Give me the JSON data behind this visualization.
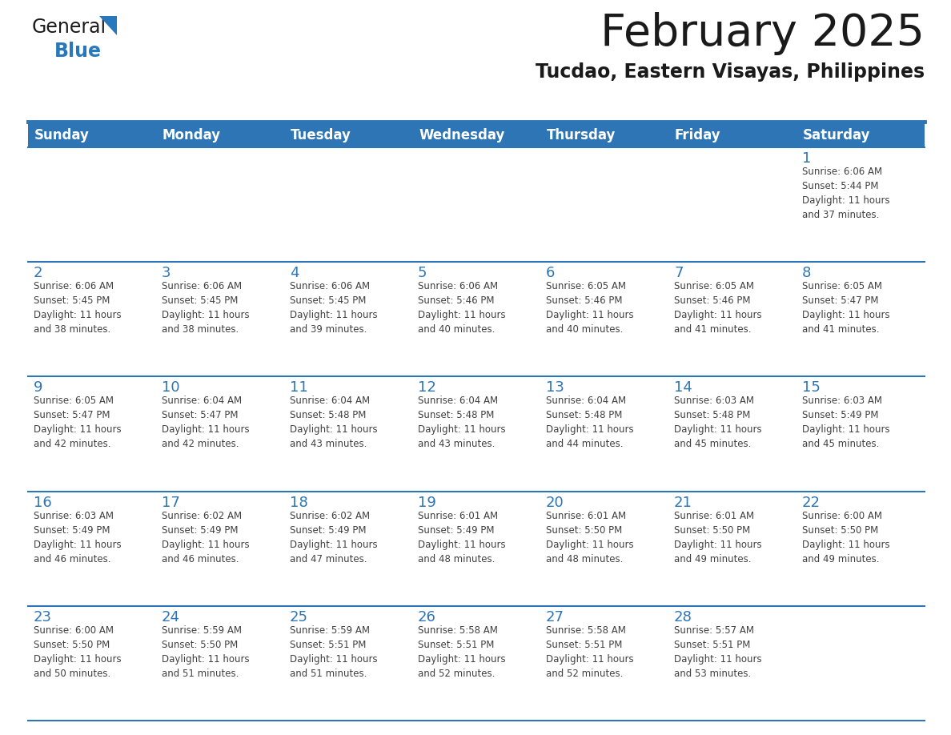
{
  "title": "February 2025",
  "subtitle": "Tucdao, Eastern Visayas, Philippines",
  "header_bg": "#2E75B6",
  "header_text_color": "#FFFFFF",
  "cell_bg": "#FFFFFF",
  "day_headers": [
    "Sunday",
    "Monday",
    "Tuesday",
    "Wednesday",
    "Thursday",
    "Friday",
    "Saturday"
  ],
  "title_color": "#1A1A1A",
  "subtitle_color": "#1A1A1A",
  "day_num_color": "#2E75B6",
  "cell_text_color": "#404040",
  "separator_color": "#2E75B6",
  "logo_general_color": "#1A1A1A",
  "logo_blue_color": "#2878BE",
  "calendar_data": [
    [
      {
        "day": null,
        "text": ""
      },
      {
        "day": null,
        "text": ""
      },
      {
        "day": null,
        "text": ""
      },
      {
        "day": null,
        "text": ""
      },
      {
        "day": null,
        "text": ""
      },
      {
        "day": null,
        "text": ""
      },
      {
        "day": 1,
        "text": "Sunrise: 6:06 AM\nSunset: 5:44 PM\nDaylight: 11 hours\nand 37 minutes."
      }
    ],
    [
      {
        "day": 2,
        "text": "Sunrise: 6:06 AM\nSunset: 5:45 PM\nDaylight: 11 hours\nand 38 minutes."
      },
      {
        "day": 3,
        "text": "Sunrise: 6:06 AM\nSunset: 5:45 PM\nDaylight: 11 hours\nand 38 minutes."
      },
      {
        "day": 4,
        "text": "Sunrise: 6:06 AM\nSunset: 5:45 PM\nDaylight: 11 hours\nand 39 minutes."
      },
      {
        "day": 5,
        "text": "Sunrise: 6:06 AM\nSunset: 5:46 PM\nDaylight: 11 hours\nand 40 minutes."
      },
      {
        "day": 6,
        "text": "Sunrise: 6:05 AM\nSunset: 5:46 PM\nDaylight: 11 hours\nand 40 minutes."
      },
      {
        "day": 7,
        "text": "Sunrise: 6:05 AM\nSunset: 5:46 PM\nDaylight: 11 hours\nand 41 minutes."
      },
      {
        "day": 8,
        "text": "Sunrise: 6:05 AM\nSunset: 5:47 PM\nDaylight: 11 hours\nand 41 minutes."
      }
    ],
    [
      {
        "day": 9,
        "text": "Sunrise: 6:05 AM\nSunset: 5:47 PM\nDaylight: 11 hours\nand 42 minutes."
      },
      {
        "day": 10,
        "text": "Sunrise: 6:04 AM\nSunset: 5:47 PM\nDaylight: 11 hours\nand 42 minutes."
      },
      {
        "day": 11,
        "text": "Sunrise: 6:04 AM\nSunset: 5:48 PM\nDaylight: 11 hours\nand 43 minutes."
      },
      {
        "day": 12,
        "text": "Sunrise: 6:04 AM\nSunset: 5:48 PM\nDaylight: 11 hours\nand 43 minutes."
      },
      {
        "day": 13,
        "text": "Sunrise: 6:04 AM\nSunset: 5:48 PM\nDaylight: 11 hours\nand 44 minutes."
      },
      {
        "day": 14,
        "text": "Sunrise: 6:03 AM\nSunset: 5:48 PM\nDaylight: 11 hours\nand 45 minutes."
      },
      {
        "day": 15,
        "text": "Sunrise: 6:03 AM\nSunset: 5:49 PM\nDaylight: 11 hours\nand 45 minutes."
      }
    ],
    [
      {
        "day": 16,
        "text": "Sunrise: 6:03 AM\nSunset: 5:49 PM\nDaylight: 11 hours\nand 46 minutes."
      },
      {
        "day": 17,
        "text": "Sunrise: 6:02 AM\nSunset: 5:49 PM\nDaylight: 11 hours\nand 46 minutes."
      },
      {
        "day": 18,
        "text": "Sunrise: 6:02 AM\nSunset: 5:49 PM\nDaylight: 11 hours\nand 47 minutes."
      },
      {
        "day": 19,
        "text": "Sunrise: 6:01 AM\nSunset: 5:49 PM\nDaylight: 11 hours\nand 48 minutes."
      },
      {
        "day": 20,
        "text": "Sunrise: 6:01 AM\nSunset: 5:50 PM\nDaylight: 11 hours\nand 48 minutes."
      },
      {
        "day": 21,
        "text": "Sunrise: 6:01 AM\nSunset: 5:50 PM\nDaylight: 11 hours\nand 49 minutes."
      },
      {
        "day": 22,
        "text": "Sunrise: 6:00 AM\nSunset: 5:50 PM\nDaylight: 11 hours\nand 49 minutes."
      }
    ],
    [
      {
        "day": 23,
        "text": "Sunrise: 6:00 AM\nSunset: 5:50 PM\nDaylight: 11 hours\nand 50 minutes."
      },
      {
        "day": 24,
        "text": "Sunrise: 5:59 AM\nSunset: 5:50 PM\nDaylight: 11 hours\nand 51 minutes."
      },
      {
        "day": 25,
        "text": "Sunrise: 5:59 AM\nSunset: 5:51 PM\nDaylight: 11 hours\nand 51 minutes."
      },
      {
        "day": 26,
        "text": "Sunrise: 5:58 AM\nSunset: 5:51 PM\nDaylight: 11 hours\nand 52 minutes."
      },
      {
        "day": 27,
        "text": "Sunrise: 5:58 AM\nSunset: 5:51 PM\nDaylight: 11 hours\nand 52 minutes."
      },
      {
        "day": 28,
        "text": "Sunrise: 5:57 AM\nSunset: 5:51 PM\nDaylight: 11 hours\nand 53 minutes."
      },
      {
        "day": null,
        "text": ""
      }
    ]
  ]
}
